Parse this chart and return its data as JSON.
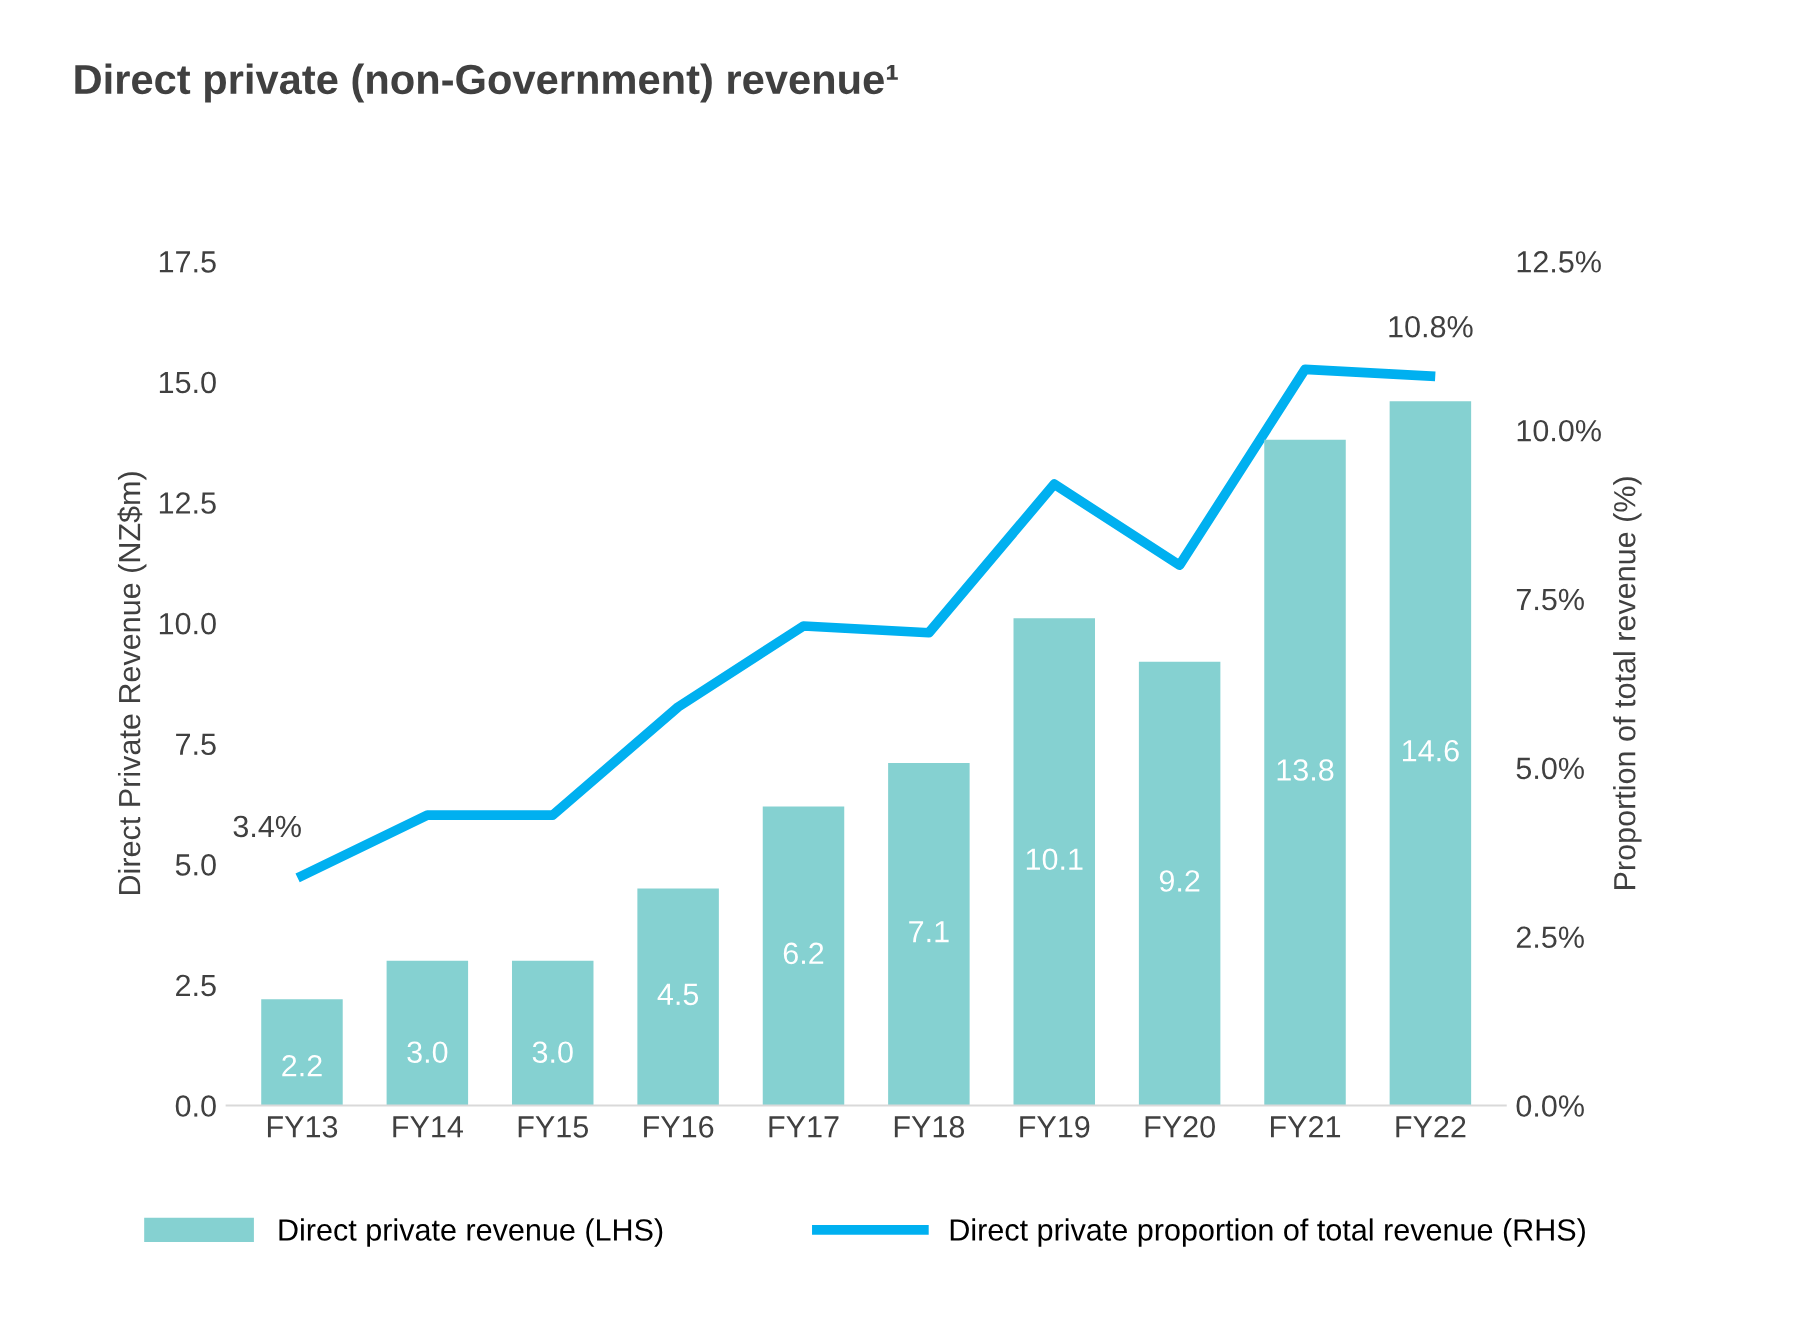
{
  "chart_data": {
    "type": "bar",
    "title": "Direct private (non-Government) revenue¹",
    "categories": [
      "FY13",
      "FY14",
      "FY15",
      "FY16",
      "FY17",
      "FY18",
      "FY19",
      "FY20",
      "FY21",
      "FY22"
    ],
    "ylabel": "Direct Private Revenue (NZ$m)",
    "y2label": "Proportion of total revenue (%)",
    "series": [
      {
        "name": "Direct private revenue (LHS)",
        "color": "#85d1d1",
        "values": [
          2.2,
          3.0,
          3.0,
          4.5,
          6.2,
          7.1,
          10.1,
          9.2,
          13.8,
          14.6
        ],
        "value_labels": [
          "2.2",
          "3.0",
          "3.0",
          "4.5",
          "6.2",
          "7.1",
          "10.1",
          "9.2",
          "13.8",
          "14.6"
        ]
      },
      {
        "name": "Direct private proportion of total revenue (RHS)",
        "type": "line",
        "axis": "y2",
        "color": "#00b0f0",
        "values": [
          3.4,
          4.3,
          4.3,
          5.9,
          7.1,
          7.0,
          9.2,
          8.0,
          10.9,
          10.8
        ],
        "value_labels": [
          "3.4%",
          null,
          null,
          null,
          null,
          null,
          null,
          null,
          null,
          "10.8%"
        ]
      }
    ],
    "ylim": [
      0,
      17.5
    ],
    "yticks": [
      {
        "value": 0,
        "label": "0.0"
      },
      {
        "value": 2.5,
        "label": "2.5"
      },
      {
        "value": 5,
        "label": "5.0"
      },
      {
        "value": 7.5,
        "label": "7.5"
      },
      {
        "value": 10,
        "label": "10.0"
      },
      {
        "value": 12.5,
        "label": "12.5"
      },
      {
        "value": 15,
        "label": "15.0"
      },
      {
        "value": 17.5,
        "label": "17.5"
      }
    ],
    "y2lim": [
      0,
      12.5
    ],
    "y2ticks": [
      {
        "value": 0,
        "label": "0.0%"
      },
      {
        "value": 2.5,
        "label": "2.5%"
      },
      {
        "value": 5,
        "label": "5.0%"
      },
      {
        "value": 7.5,
        "label": "7.5%"
      },
      {
        "value": 10,
        "label": "10.0%"
      },
      {
        "value": 12.5,
        "label": "12.5%"
      }
    ],
    "grid": false,
    "legend": "bottom",
    "marker": "none",
    "line_style": "solid"
  }
}
